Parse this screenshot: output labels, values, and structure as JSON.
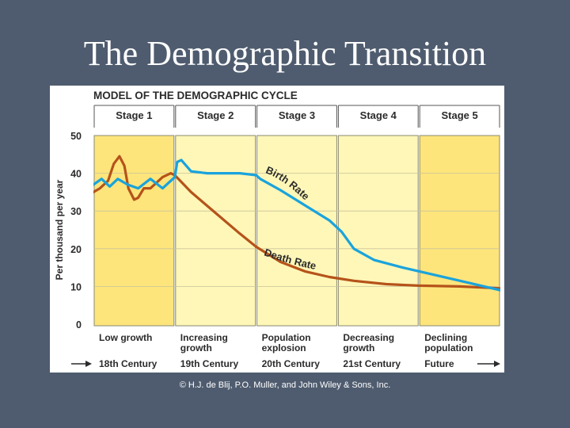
{
  "slide": {
    "title": "The Demographic Transition",
    "credit": "© H.J. de Blij, P.O. Muller, and John Wiley & Sons, Inc."
  },
  "chart_data": {
    "type": "line",
    "title": "MODEL OF THE DEMOGRAPHIC CYCLE",
    "ylabel": "Per thousand per year",
    "xlabel": "",
    "ylim": [
      0,
      50
    ],
    "yticks": [
      0,
      10,
      20,
      30,
      40,
      50
    ],
    "grid": true,
    "stages": [
      {
        "label": "Stage 1",
        "description": [
          "Low growth"
        ],
        "era": "18th Century",
        "shade": "#fde57c"
      },
      {
        "label": "Stage 2",
        "description": [
          "Increasing",
          "growth"
        ],
        "era": "19th Century",
        "shade": "#fff7b8"
      },
      {
        "label": "Stage 3",
        "description": [
          "Population",
          "explosion"
        ],
        "era": "20th Century",
        "shade": "#fff7b8"
      },
      {
        "label": "Stage 4",
        "description": [
          "Decreasing",
          "growth"
        ],
        "era": "21st Century",
        "shade": "#fff7b8"
      },
      {
        "label": "Stage 5",
        "description": [
          "Declining",
          "population"
        ],
        "era": "Future",
        "shade": "#fde57c"
      }
    ],
    "series": [
      {
        "name": "Birth Rate",
        "color": "#1aa3dc",
        "points": [
          [
            0,
            37
          ],
          [
            0.1,
            38.5
          ],
          [
            0.2,
            36.5
          ],
          [
            0.3,
            38.5
          ],
          [
            0.42,
            37
          ],
          [
            0.55,
            36
          ],
          [
            0.7,
            38.5
          ],
          [
            0.85,
            36
          ],
          [
            1.0,
            39
          ],
          [
            1.03,
            43
          ],
          [
            1.08,
            43.5
          ],
          [
            1.2,
            40.5
          ],
          [
            1.4,
            40
          ],
          [
            1.6,
            40
          ],
          [
            1.8,
            40
          ],
          [
            2.0,
            39.5
          ],
          [
            2.05,
            38.5
          ],
          [
            2.3,
            35.5
          ],
          [
            2.6,
            31.5
          ],
          [
            2.9,
            27.5
          ],
          [
            3.05,
            24.5
          ],
          [
            3.2,
            20
          ],
          [
            3.45,
            17
          ],
          [
            3.8,
            15
          ],
          [
            4.2,
            13
          ],
          [
            4.6,
            11
          ],
          [
            5.0,
            9
          ]
        ]
      },
      {
        "name": "Death Rate",
        "color": "#b5531a",
        "points": [
          [
            0,
            35
          ],
          [
            0.08,
            36
          ],
          [
            0.18,
            38
          ],
          [
            0.25,
            42.5
          ],
          [
            0.32,
            44.5
          ],
          [
            0.38,
            42
          ],
          [
            0.43,
            36
          ],
          [
            0.5,
            33
          ],
          [
            0.55,
            33.5
          ],
          [
            0.62,
            36
          ],
          [
            0.7,
            36
          ],
          [
            0.85,
            39
          ],
          [
            0.95,
            40
          ],
          [
            1.0,
            39.5
          ],
          [
            1.2,
            35
          ],
          [
            1.5,
            29.5
          ],
          [
            1.8,
            24
          ],
          [
            2.0,
            20.5
          ],
          [
            2.3,
            16.5
          ],
          [
            2.6,
            14
          ],
          [
            2.9,
            12.5
          ],
          [
            3.2,
            11.5
          ],
          [
            3.6,
            10.6
          ],
          [
            4.0,
            10.2
          ],
          [
            4.5,
            10
          ],
          [
            5.0,
            9.5
          ]
        ]
      }
    ],
    "annotations": [
      {
        "text": "Birth Rate",
        "series": "Birth Rate"
      },
      {
        "text": "Death Rate",
        "series": "Death Rate"
      }
    ]
  }
}
